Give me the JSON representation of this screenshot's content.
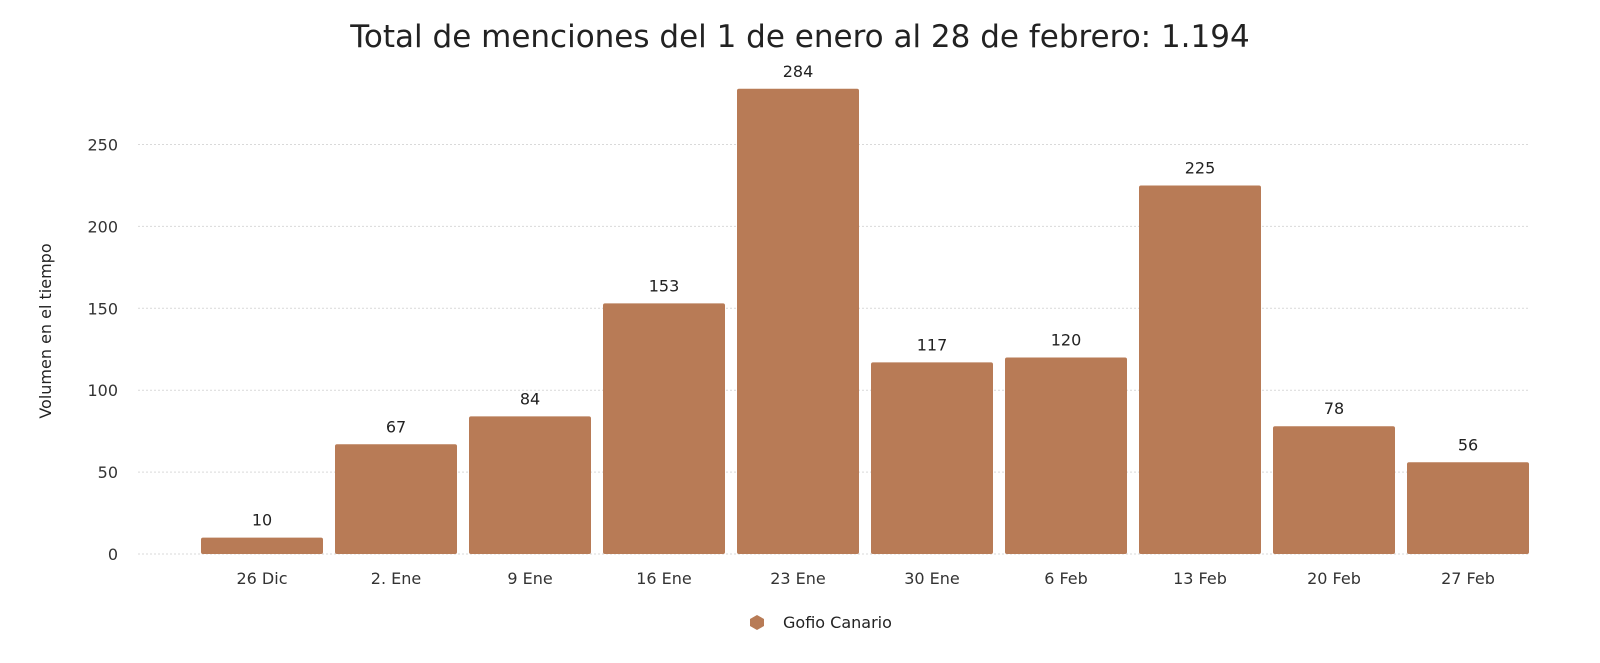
{
  "chart_data": {
    "type": "bar",
    "title": "Total de menciones del 1 de enero al 28 de febrero: 1.194",
    "xlabel": "",
    "ylabel": "Volumen en el tiempo",
    "categories": [
      "26  Dic",
      "2. Ene",
      "9  Ene",
      "16  Ene",
      "23  Ene",
      "30  Ene",
      "6 Feb",
      "13 Feb",
      "20 Feb",
      "27 Feb"
    ],
    "series": [
      {
        "name": "Gofio Canario",
        "values": [
          10,
          67,
          84,
          153,
          284,
          117,
          120,
          225,
          78,
          56
        ]
      }
    ],
    "yticks": [
      "0",
      "50",
      "100",
      "150",
      "200",
      "250"
    ],
    "ytick_values": [
      0,
      50,
      100,
      150,
      200,
      250
    ],
    "ylim": [
      0,
      300
    ],
    "grid": true,
    "legend_position": "bottom-center",
    "bar_color": "#b87b56"
  }
}
